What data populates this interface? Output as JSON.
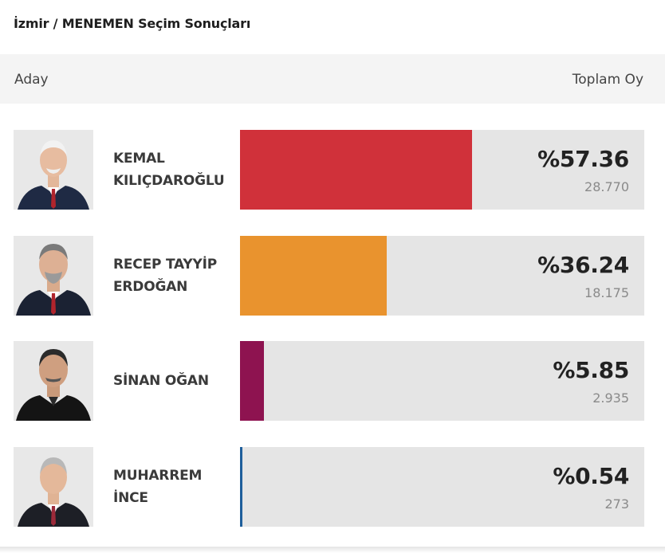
{
  "title": "İzmir / MENEMEN Seçim Sonuçları",
  "header": {
    "left": "Aday",
    "right": "Toplam Oy"
  },
  "candidates": [
    {
      "name_line1": "KEMAL",
      "name_line2": "KILIÇDAROĞLU",
      "percent_label": "%57.36",
      "percent": 57.36,
      "votes": "28.770",
      "color": "#d0313a",
      "avatar_icon": "portrait-man-white-hair-icon"
    },
    {
      "name_line1": "RECEP TAYYİP",
      "name_line2": "ERDOĞAN",
      "percent_label": "%36.24",
      "percent": 36.24,
      "votes": "18.175",
      "color": "#e9932e",
      "avatar_icon": "portrait-man-grey-hair-icon"
    },
    {
      "name_line1": "SİNAN OĞAN",
      "name_line2": "",
      "percent_label": "%5.85",
      "percent": 5.85,
      "votes": "2.935",
      "color": "#8e1350",
      "avatar_icon": "portrait-man-dark-hair-icon"
    },
    {
      "name_line1": "MUHARREM",
      "name_line2": "İNCE",
      "percent_label": "%0.54",
      "percent": 0.54,
      "votes": "273",
      "color": "#1f5f9c",
      "avatar_icon": "portrait-man-grey-hair-icon"
    }
  ]
}
